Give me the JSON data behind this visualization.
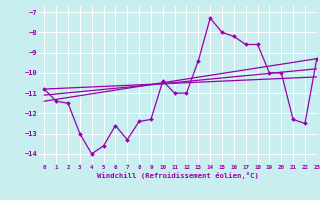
{
  "xlabel": "Windchill (Refroidissement éolien,°C)",
  "xlim": [
    -0.5,
    23
  ],
  "ylim": [
    -14.5,
    -6.7
  ],
  "yticks": [
    -14,
    -13,
    -12,
    -11,
    -10,
    -9,
    -8,
    -7
  ],
  "xticks": [
    0,
    1,
    2,
    3,
    4,
    5,
    6,
    7,
    8,
    9,
    10,
    11,
    12,
    13,
    14,
    15,
    16,
    17,
    18,
    19,
    20,
    21,
    22,
    23
  ],
  "background_color": "#c8eef0",
  "grid_color": "#ffffff",
  "line_color": "#9900aa",
  "hours": [
    0,
    1,
    2,
    3,
    4,
    5,
    6,
    7,
    8,
    9,
    10,
    11,
    12,
    13,
    14,
    15,
    16,
    17,
    18,
    19,
    20,
    21,
    22,
    23
  ],
  "windchill": [
    -10.8,
    -11.4,
    -11.5,
    -13.0,
    -14.0,
    -13.6,
    -12.6,
    -13.3,
    -12.4,
    -12.3,
    -10.4,
    -11.0,
    -11.0,
    -9.4,
    -7.3,
    -8.0,
    -8.2,
    -8.6,
    -8.6,
    -10.0,
    -10.0,
    -12.3,
    -12.5,
    -9.3
  ],
  "trend1_x": [
    0,
    23
  ],
  "trend1_y": [
    -11.4,
    -9.3
  ],
  "trend2_x": [
    0,
    23
  ],
  "trend2_y": [
    -11.1,
    -9.8
  ],
  "trend3_x": [
    0,
    23
  ],
  "trend3_y": [
    -10.8,
    -10.2
  ]
}
